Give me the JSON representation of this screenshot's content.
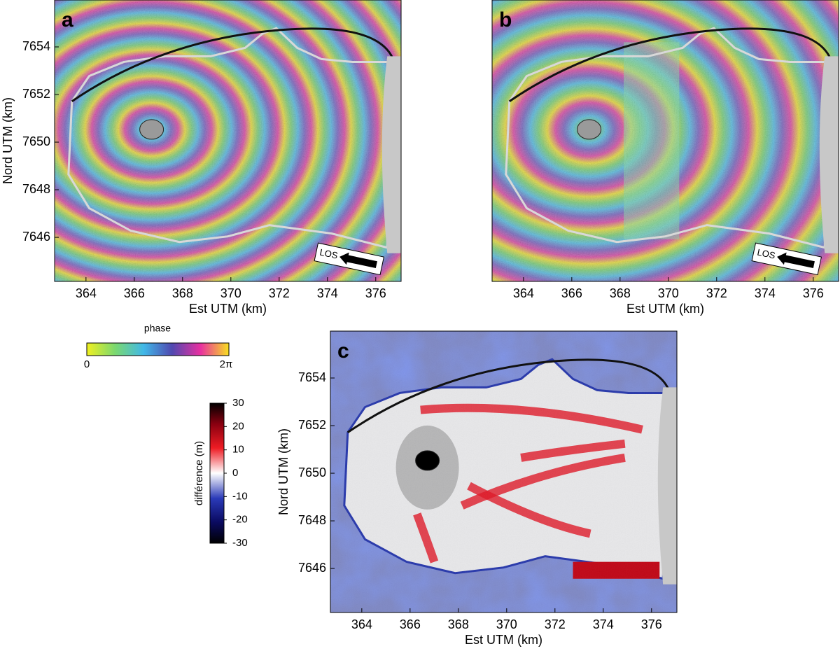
{
  "panels": [
    {
      "label": "a",
      "xlabel": "Est UTM (km)",
      "ylabel": "Nord UTM (km)",
      "xlim": [
        362.7,
        377.05
      ],
      "ylim": [
        7644.15,
        7655.97
      ],
      "xticks": [
        364,
        366,
        368,
        370,
        372,
        374,
        376
      ],
      "yticks": [
        7646,
        7648,
        7650,
        7652,
        7654
      ],
      "los": "LOS"
    },
    {
      "label": "b",
      "xlabel": "Est UTM (km)",
      "xlim": [
        362.7,
        377.05
      ],
      "ylim": [
        7644.15,
        7655.97
      ],
      "xticks": [
        364,
        366,
        368,
        370,
        372,
        374,
        376
      ],
      "los": "LOS"
    },
    {
      "label": "c",
      "xlabel": "Est UTM (km)",
      "ylabel": "Nord UTM (km)",
      "xlim": [
        362.7,
        377.05
      ],
      "ylim": [
        7644.15,
        7655.97
      ],
      "xticks": [
        364,
        366,
        368,
        370,
        372,
        374,
        376
      ],
      "yticks": [
        7646,
        7648,
        7650,
        7652,
        7654
      ]
    }
  ],
  "phase_colorbar": {
    "title": "phase",
    "labels": [
      "0",
      "2π"
    ]
  },
  "difference_colorbar": {
    "title": "différence (m)",
    "lim": [
      -30,
      30
    ],
    "ticks": [
      30,
      20,
      10,
      0,
      -10,
      -20,
      -30
    ]
  }
}
